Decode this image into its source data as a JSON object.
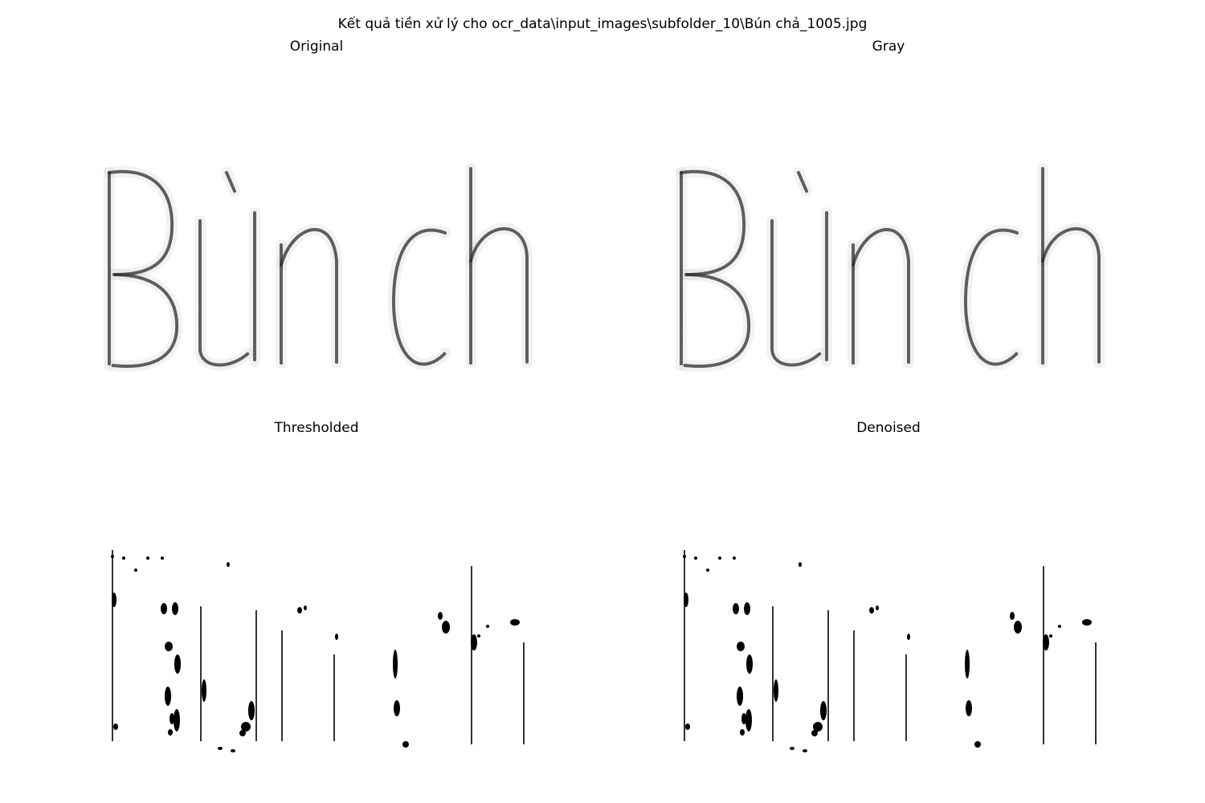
{
  "figure": {
    "suptitle": "Kết quả tiền xử lý cho ocr_data\\input_images\\subfolder_10\\Bún chả_1005.jpg"
  },
  "panels": [
    {
      "title": "Original",
      "style": "soft"
    },
    {
      "title": "Gray",
      "style": "soft"
    },
    {
      "title": "Thresholded",
      "style": "binary"
    },
    {
      "title": "Denoised",
      "style": "binary"
    }
  ],
  "colors": {
    "background": "#ffffff",
    "ink": "#000000",
    "soft_stroke": "#2b2b2b",
    "halo": "#d9d9d9"
  }
}
